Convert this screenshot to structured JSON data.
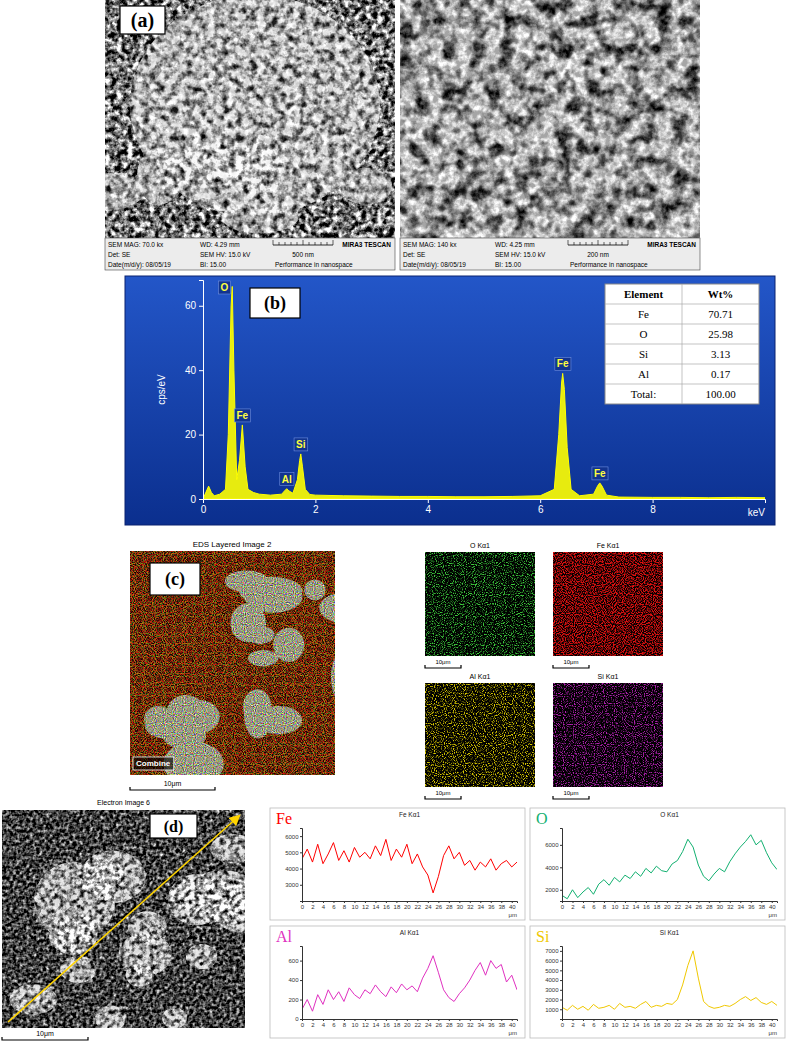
{
  "figure": {
    "panel_a": {
      "label": "(a)",
      "images": [
        {
          "mag": "SEM MAG: 70.0 kx",
          "wd": "WD: 4.29 mm",
          "det": "Det: SE",
          "hv": "SEM HV: 15.0 kV",
          "scale": "500 nm",
          "brand": "MIRA3 TESCAN",
          "date": "Date(m/d/y): 08/05/19",
          "bi": "BI: 15.00",
          "slogan": "Performance in nanospace"
        },
        {
          "mag": "SEM MAG: 140 kx",
          "wd": "WD: 4.25 mm",
          "det": "Det: SE",
          "hv": "SEM HV: 15.0 kV",
          "scale": "200 nm",
          "brand": "MIRA3 TESCAN",
          "date": "Date(m/d/y): 08/05/19",
          "bi": "BI: 15.00",
          "slogan": "Performance in nanospace"
        }
      ]
    },
    "panel_c": {
      "label": "(c)",
      "title": "EDS Layered Image 2",
      "combined": {
        "label": "Combine",
        "scale": "10μm"
      },
      "maps": [
        {
          "title": "O Kα1",
          "color": "#3ccc3c",
          "scale": "10μm"
        },
        {
          "title": "Fe Kα1",
          "color": "#e01010",
          "scale": "10μm"
        },
        {
          "title": "Al Kα1",
          "color": "#d8c800",
          "scale": "10μm"
        },
        {
          "title": "Si Kα1",
          "color": "#b020b0",
          "scale": "10μm"
        }
      ]
    },
    "panel_d": {
      "label": "(d)",
      "title": "Electron Image 6",
      "scale": "10μm"
    }
  },
  "chart_data": [
    {
      "type": "area",
      "label": "(b)",
      "color": "#ffff00",
      "x": [
        0,
        0.1,
        0.15,
        0.2,
        0.3,
        0.4,
        0.45,
        0.5,
        0.52,
        0.55,
        0.6,
        0.65,
        0.7,
        0.75,
        0.8,
        0.9,
        1.0,
        1.2,
        1.4,
        1.45,
        1.49,
        1.53,
        1.6,
        1.68,
        1.72,
        1.74,
        1.77,
        1.82,
        1.9,
        2.0,
        2.5,
        3.0,
        3.5,
        4.0,
        4.5,
        5.0,
        5.5,
        6.0,
        6.25,
        6.33,
        6.38,
        6.4,
        6.43,
        6.48,
        6.55,
        6.7,
        6.95,
        7.02,
        7.06,
        7.1,
        7.18,
        7.4,
        8.0,
        8.5,
        9.0,
        9.5,
        10.0
      ],
      "values": [
        0,
        4,
        2,
        1,
        1.5,
        3,
        20,
        60,
        66,
        40,
        6,
        12,
        23,
        10,
        3,
        2,
        1.5,
        1.2,
        1.5,
        2.5,
        3.2,
        2.5,
        1.8,
        6,
        12,
        14,
        10,
        3,
        1.4,
        1.2,
        1,
        0.9,
        0.8,
        0.8,
        0.7,
        0.7,
        0.8,
        1,
        3,
        20,
        36,
        39,
        34,
        16,
        3,
        1,
        1.5,
        4,
        5,
        4,
        1.2,
        0.6,
        0.5,
        0.5,
        0.4,
        0.5,
        0.4
      ],
      "xlim": [
        0,
        10
      ],
      "ylim": [
        0,
        68
      ],
      "xticks": [
        0,
        2,
        4,
        6,
        8
      ],
      "yticks": [
        0,
        20,
        40,
        60
      ],
      "x_label": "keV",
      "y_label": "cps/eV",
      "annotations": [
        {
          "text": "O",
          "x": 0.52
        },
        {
          "text": "Fe",
          "x": 0.7
        },
        {
          "text": "Al",
          "x": 1.49
        },
        {
          "text": "Si",
          "x": 1.74
        },
        {
          "text": "Fe",
          "x": 6.4
        },
        {
          "text": "Fe",
          "x": 7.06
        }
      ],
      "table": {
        "columns": [
          "Element",
          "Wt%"
        ],
        "rows": [
          [
            "Fe",
            "70.71"
          ],
          [
            "O",
            "25.98"
          ],
          [
            "Si",
            "3.13"
          ],
          [
            "Al",
            "0.17"
          ],
          [
            "Total:",
            "100.00"
          ]
        ]
      }
    },
    {
      "type": "line",
      "title": "Fe Kα1",
      "label": "Fe",
      "color": "#ff0000",
      "x": [
        0,
        1,
        2,
        3,
        4,
        5,
        6,
        7,
        8,
        9,
        10,
        11,
        12,
        13,
        14,
        15,
        16,
        17,
        18,
        19,
        20,
        21,
        22,
        23,
        24,
        25,
        26,
        27,
        28,
        29,
        30,
        31,
        32,
        33,
        34,
        35,
        36,
        37,
        38,
        39,
        40,
        41
      ],
      "values": [
        4600,
        5200,
        4400,
        5500,
        4300,
        4900,
        5600,
        4500,
        5100,
        4400,
        5300,
        4700,
        5000,
        4600,
        5400,
        4800,
        5800,
        4500,
        5200,
        4700,
        5500,
        4300,
        4900,
        4100,
        3600,
        2500,
        3500,
        4800,
        5400,
        4600,
        5000,
        4200,
        4500,
        3900,
        4400,
        4100,
        4600,
        3900,
        4300,
        4500,
        4100,
        4400
      ],
      "xlim": [
        0,
        41
      ],
      "ylim": [
        2000,
        6500
      ],
      "xticks": [
        0,
        2,
        4,
        6,
        8,
        10,
        12,
        14,
        16,
        18,
        20,
        22,
        24,
        26,
        28,
        30,
        32,
        34,
        36,
        38,
        40
      ],
      "yticks": [
        3000,
        4000,
        5000,
        6000
      ],
      "x_label": "μm"
    },
    {
      "type": "line",
      "title": "O Kα1",
      "label": "O",
      "color": "#12b070",
      "x": [
        0,
        1,
        2,
        3,
        4,
        5,
        6,
        7,
        8,
        9,
        10,
        11,
        12,
        13,
        14,
        15,
        16,
        17,
        18,
        19,
        20,
        21,
        22,
        23,
        24,
        25,
        26,
        27,
        28,
        29,
        30,
        31,
        32,
        33,
        34,
        35,
        36,
        37,
        38,
        39,
        40,
        41
      ],
      "values": [
        1500,
        1200,
        2000,
        1300,
        1800,
        2200,
        1600,
        2500,
        2900,
        2400,
        3100,
        2700,
        3300,
        3000,
        3600,
        3200,
        3900,
        3500,
        4100,
        3700,
        3600,
        4300,
        4600,
        5400,
        6500,
        5800,
        4200,
        3200,
        2800,
        3400,
        3900,
        3600,
        4500,
        5200,
        5800,
        6300,
        6900,
        6000,
        6400,
        5300,
        4400,
        3800
      ],
      "xlim": [
        0,
        41
      ],
      "ylim": [
        1000,
        7500
      ],
      "xticks": [
        0,
        2,
        4,
        6,
        8,
        10,
        12,
        14,
        16,
        18,
        20,
        22,
        24,
        26,
        28,
        30,
        32,
        34,
        36,
        38,
        40
      ],
      "yticks": [
        2000,
        4000,
        6000
      ],
      "x_label": "μm"
    },
    {
      "type": "line",
      "title": "Al Kα1",
      "label": "Al",
      "color": "#e030c0",
      "x": [
        0,
        1,
        2,
        3,
        4,
        5,
        6,
        7,
        8,
        9,
        10,
        11,
        12,
        13,
        14,
        15,
        16,
        17,
        18,
        19,
        20,
        21,
        22,
        23,
        24,
        25,
        26,
        27,
        28,
        29,
        30,
        31,
        32,
        33,
        34,
        35,
        36,
        37,
        38,
        39,
        40,
        41
      ],
      "values": [
        100,
        200,
        80,
        250,
        150,
        300,
        200,
        280,
        180,
        320,
        250,
        210,
        300,
        260,
        350,
        280,
        230,
        330,
        270,
        360,
        300,
        340,
        280,
        420,
        520,
        650,
        480,
        300,
        220,
        180,
        260,
        320,
        400,
        500,
        580,
        450,
        600,
        520,
        560,
        380,
        450,
        300
      ],
      "xlim": [
        0,
        41
      ],
      "ylim": [
        0,
        750
      ],
      "xticks": [
        0,
        2,
        4,
        6,
        8,
        10,
        12,
        14,
        16,
        18,
        20,
        22,
        24,
        26,
        28,
        30,
        32,
        34,
        36,
        38,
        40
      ],
      "yticks": [
        0,
        200,
        400,
        600
      ],
      "x_label": "μm"
    },
    {
      "type": "line",
      "title": "Si Kα1",
      "label": "Si",
      "color": "#f0c800",
      "x": [
        0,
        1,
        2,
        3,
        4,
        5,
        6,
        7,
        8,
        9,
        10,
        11,
        12,
        13,
        14,
        15,
        16,
        17,
        18,
        19,
        20,
        21,
        22,
        23,
        24,
        25,
        26,
        27,
        28,
        29,
        30,
        31,
        32,
        33,
        34,
        35,
        36,
        37,
        38,
        39,
        40,
        41
      ],
      "values": [
        1200,
        900,
        1400,
        1000,
        1300,
        900,
        1500,
        1100,
        1200,
        1400,
        1000,
        1600,
        1200,
        1300,
        1100,
        1500,
        1800,
        1200,
        1400,
        1300,
        1600,
        1500,
        2000,
        3500,
        5500,
        7000,
        4200,
        1800,
        1300,
        1100,
        1200,
        1400,
        1300,
        1600,
        2000,
        2300,
        1900,
        2200,
        1700,
        1500,
        1800,
        1400
      ],
      "xlim": [
        0,
        41
      ],
      "ylim": [
        0,
        7500
      ],
      "xticks": [
        0,
        2,
        4,
        6,
        8,
        10,
        12,
        14,
        16,
        18,
        20,
        22,
        24,
        26,
        28,
        30,
        32,
        34,
        36,
        38,
        40
      ],
      "yticks": [
        1000,
        2000,
        3000,
        4000,
        5000,
        6000,
        7000
      ],
      "x_label": "μm"
    }
  ]
}
